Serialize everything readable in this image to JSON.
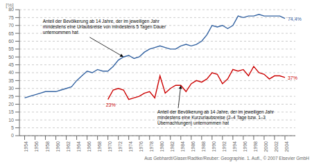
{
  "chart_data": {
    "type": "line",
    "ylabel": "[%]",
    "x": [
      1954,
      1955,
      1956,
      1957,
      1958,
      1959,
      1960,
      1961,
      1962,
      1963,
      1964,
      1965,
      1966,
      1967,
      1968,
      1969,
      1970,
      1971,
      1972,
      1973,
      1974,
      1975,
      1976,
      1977,
      1978,
      1979,
      1980,
      1981,
      1982,
      1983,
      1984,
      1985,
      1986,
      1987,
      1988,
      1989,
      1990,
      1991,
      1992,
      1993,
      1994,
      1995,
      1996,
      1997,
      1998,
      1999,
      2000,
      2001,
      2002,
      2003,
      2004
    ],
    "series": [
      {
        "color": "#3060a0",
        "values": [
          24,
          25,
          26,
          27,
          28,
          28,
          28,
          29,
          30,
          31,
          35,
          38,
          41,
          40,
          42,
          41,
          41,
          44,
          48,
          50,
          51,
          49,
          50,
          53,
          55,
          56,
          57,
          56,
          55,
          55,
          57,
          58,
          57,
          58,
          60,
          64,
          70,
          69,
          70,
          68,
          70,
          76,
          75,
          76,
          76,
          77,
          76,
          76,
          76,
          76,
          74.4
        ]
      },
      {
        "color": "#cc0000",
        "values": [
          null,
          null,
          null,
          null,
          null,
          null,
          null,
          null,
          null,
          null,
          null,
          null,
          null,
          null,
          null,
          null,
          23,
          29,
          30,
          29,
          23,
          24,
          25,
          27,
          28,
          24,
          38,
          27,
          30,
          32,
          32,
          28,
          33,
          35,
          34,
          36,
          40,
          39,
          33,
          36,
          42,
          41,
          42,
          38,
          44,
          40,
          39,
          36,
          38,
          38,
          37
        ]
      }
    ],
    "xlim": [
      1953,
      2006
    ],
    "xticks": [
      1954,
      1956,
      1958,
      1960,
      1962,
      1964,
      1966,
      1968,
      1970,
      1972,
      1974,
      1976,
      1978,
      1980,
      1982,
      1984,
      1986,
      1988,
      1990,
      1992,
      1994,
      1996,
      1998,
      2000,
      2002,
      2004
    ],
    "ylim": [
      0,
      80
    ],
    "yticks": [
      0,
      5,
      10,
      15,
      20,
      25,
      30,
      35,
      40,
      45,
      50,
      55,
      60,
      65,
      70,
      75,
      80
    ],
    "grid": "y",
    "annotations": [
      {
        "text": "Anteil der Bevölkerung ab 14 Jahre, der im jeweiligen Jahr\nmindestens eine Urlaubsreise von mindestens 5 Tagen Dauer\nunternommen hat",
        "color": "#000000"
      },
      {
        "text": "Anteil der Bevölkerung ab 14 Jahre, der im jeweiligen Jahr\nmindestens eine Kurzurlaubsreise (2–4 Tage bzw. 1–3\nÜbernachtungen) unternommen hat",
        "color": "#000000"
      },
      {
        "text": "74,4%",
        "color": "#3060a0"
      },
      {
        "text": "37%",
        "color": "#cc0000"
      },
      {
        "text": "23%",
        "color": "#cc0000"
      },
      {
        "text": "Aus Gebhardt/Glaser/Radtke/Reuber: Geographie. 1. Aufl., © 2007 Elsevier GmbH",
        "color": "#666666"
      }
    ]
  }
}
